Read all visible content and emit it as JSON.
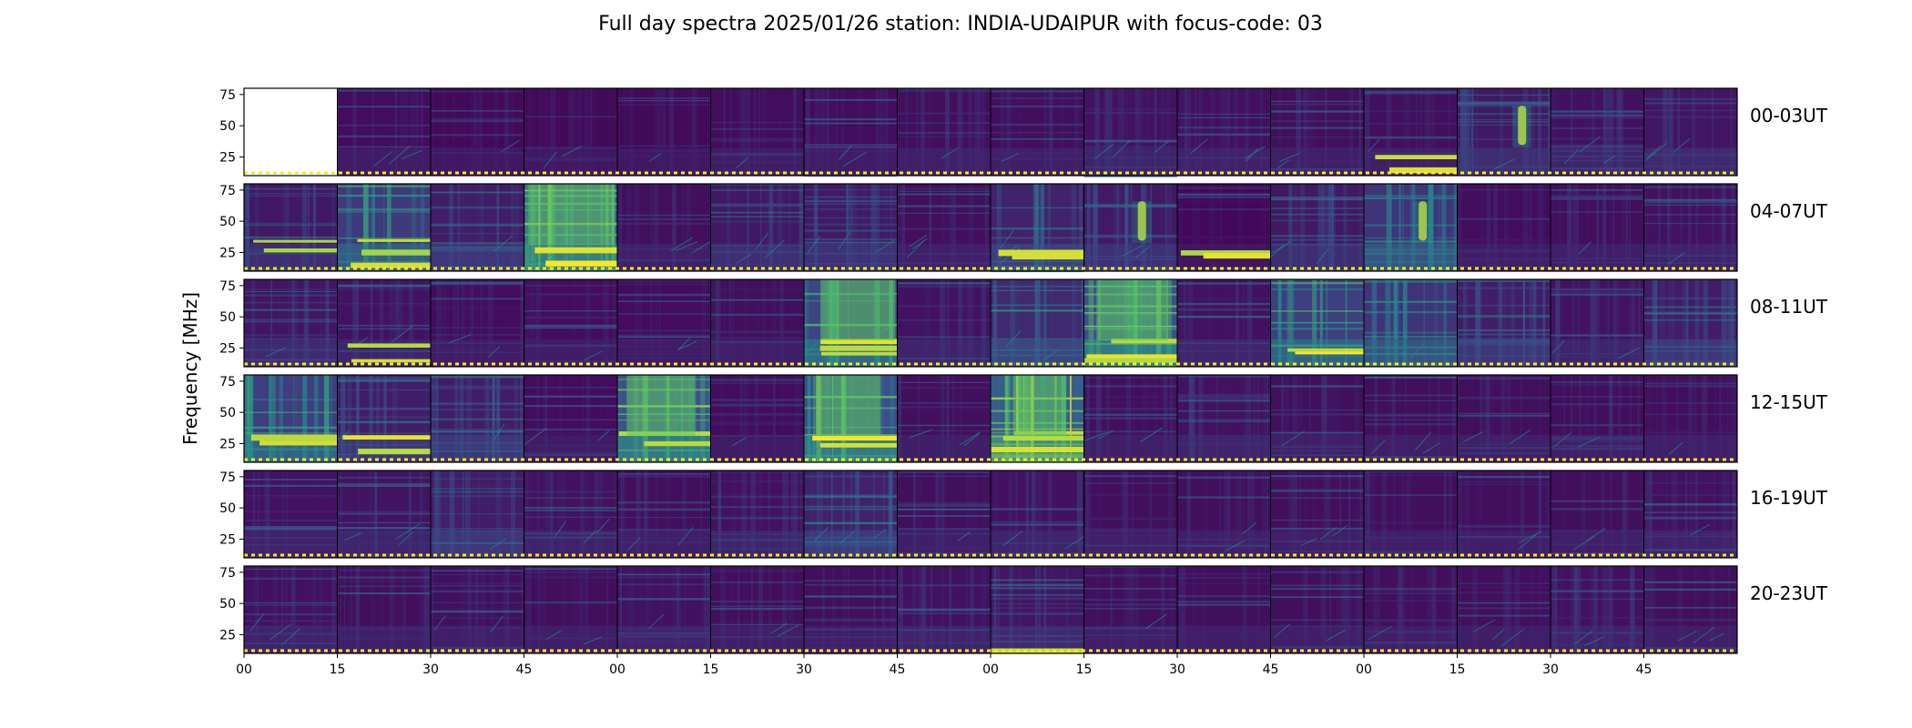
{
  "chart_data": {
    "type": "heatmap",
    "title": "Full day spectra 2025/01/26 station: INDIA-UDAIPUR with focus-code: 03",
    "ylabel": "Frequency [MHz]",
    "xlabel": "",
    "colormap": "viridis",
    "colormap_stops": [
      "#440154",
      "#3b528b",
      "#21918c",
      "#5ec962",
      "#fde725"
    ],
    "y_ticks": [
      25,
      50,
      75
    ],
    "ylim": [
      10,
      80
    ],
    "x_ticks": [
      "00",
      "15",
      "30",
      "45",
      "00",
      "15",
      "30",
      "45",
      "00",
      "15",
      "30",
      "45",
      "00",
      "15",
      "30",
      "45"
    ],
    "rows": [
      {
        "label": "00-03UT",
        "panels": [
          {
            "start": "00:00",
            "missing": true,
            "base": 0.0,
            "feature": "none"
          },
          {
            "start": "00:15",
            "base": 0.1,
            "feature": "none"
          },
          {
            "start": "00:30",
            "base": 0.08,
            "feature": "none"
          },
          {
            "start": "00:45",
            "base": 0.08,
            "feature": "none"
          },
          {
            "start": "01:00",
            "base": 0.08,
            "feature": "none"
          },
          {
            "start": "01:15",
            "base": 0.1,
            "feature": "none"
          },
          {
            "start": "01:30",
            "base": 0.1,
            "feature": "none"
          },
          {
            "start": "01:45",
            "base": 0.12,
            "feature": "none"
          },
          {
            "start": "02:00",
            "base": 0.12,
            "feature": "none"
          },
          {
            "start": "02:15",
            "base": 0.15,
            "feature": "none"
          },
          {
            "start": "02:30",
            "base": 0.13,
            "feature": "none"
          },
          {
            "start": "02:45",
            "base": 0.12,
            "feature": "none"
          },
          {
            "start": "03:00",
            "base": 0.12,
            "feature": "lowband"
          },
          {
            "start": "03:15",
            "base": 0.2,
            "feature": "burst"
          },
          {
            "start": "03:30",
            "base": 0.15,
            "feature": "none"
          },
          {
            "start": "03:45",
            "base": 0.18,
            "feature": "none"
          }
        ]
      },
      {
        "label": "04-07UT",
        "panels": [
          {
            "start": "04:00",
            "base": 0.2,
            "feature": "lowband"
          },
          {
            "start": "04:15",
            "base": 0.5,
            "feature": "lowband"
          },
          {
            "start": "04:30",
            "base": 0.25,
            "feature": "none"
          },
          {
            "start": "04:45",
            "base": 0.75,
            "feature": "strong"
          },
          {
            "start": "05:00",
            "base": 0.12,
            "feature": "none"
          },
          {
            "start": "05:15",
            "base": 0.2,
            "feature": "none"
          },
          {
            "start": "05:30",
            "base": 0.22,
            "feature": "none"
          },
          {
            "start": "05:45",
            "base": 0.12,
            "feature": "none"
          },
          {
            "start": "06:00",
            "base": 0.3,
            "feature": "lowband"
          },
          {
            "start": "06:15",
            "base": 0.22,
            "feature": "burst"
          },
          {
            "start": "06:30",
            "base": 0.06,
            "feature": "lowband"
          },
          {
            "start": "06:45",
            "base": 0.2,
            "feature": "none"
          },
          {
            "start": "07:00",
            "base": 0.45,
            "feature": "burst"
          },
          {
            "start": "07:15",
            "base": 0.1,
            "feature": "none"
          },
          {
            "start": "07:30",
            "base": 0.12,
            "feature": "none"
          },
          {
            "start": "07:45",
            "base": 0.14,
            "feature": "none"
          }
        ]
      },
      {
        "label": "08-11UT",
        "panels": [
          {
            "start": "08:00",
            "base": 0.18,
            "feature": "none"
          },
          {
            "start": "08:15",
            "base": 0.15,
            "feature": "lowband"
          },
          {
            "start": "08:30",
            "base": 0.1,
            "feature": "none"
          },
          {
            "start": "08:45",
            "base": 0.1,
            "feature": "none"
          },
          {
            "start": "09:00",
            "base": 0.1,
            "feature": "none"
          },
          {
            "start": "09:15",
            "base": 0.12,
            "feature": "none"
          },
          {
            "start": "09:30",
            "base": 0.6,
            "feature": "strong"
          },
          {
            "start": "09:45",
            "base": 0.15,
            "feature": "none"
          },
          {
            "start": "10:00",
            "base": 0.35,
            "feature": "none"
          },
          {
            "start": "10:15",
            "base": 0.7,
            "feature": "strong"
          },
          {
            "start": "10:30",
            "base": 0.15,
            "feature": "none"
          },
          {
            "start": "10:45",
            "base": 0.55,
            "feature": "lowband"
          },
          {
            "start": "11:00",
            "base": 0.45,
            "feature": "none"
          },
          {
            "start": "11:15",
            "base": 0.25,
            "feature": "none"
          },
          {
            "start": "11:30",
            "base": 0.15,
            "feature": "none"
          },
          {
            "start": "11:45",
            "base": 0.25,
            "feature": "none"
          }
        ]
      },
      {
        "label": "12-15UT",
        "panels": [
          {
            "start": "12:00",
            "base": 0.55,
            "feature": "lowband"
          },
          {
            "start": "12:15",
            "base": 0.25,
            "feature": "lowband"
          },
          {
            "start": "12:30",
            "base": 0.25,
            "feature": "none"
          },
          {
            "start": "12:45",
            "base": 0.1,
            "feature": "none"
          },
          {
            "start": "13:00",
            "base": 0.7,
            "feature": "strong"
          },
          {
            "start": "13:15",
            "base": 0.1,
            "feature": "none"
          },
          {
            "start": "13:30",
            "base": 0.7,
            "feature": "strong"
          },
          {
            "start": "13:45",
            "base": 0.12,
            "feature": "none"
          },
          {
            "start": "14:00",
            "base": 0.85,
            "feature": "strong"
          },
          {
            "start": "14:15",
            "base": 0.12,
            "feature": "none"
          },
          {
            "start": "14:30",
            "base": 0.15,
            "feature": "none"
          },
          {
            "start": "14:45",
            "base": 0.12,
            "feature": "none"
          },
          {
            "start": "15:00",
            "base": 0.12,
            "feature": "none"
          },
          {
            "start": "15:15",
            "base": 0.12,
            "feature": "none"
          },
          {
            "start": "15:30",
            "base": 0.12,
            "feature": "none"
          },
          {
            "start": "15:45",
            "base": 0.12,
            "feature": "none"
          }
        ]
      },
      {
        "label": "16-19UT",
        "panels": [
          {
            "start": "16:00",
            "base": 0.14,
            "feature": "none"
          },
          {
            "start": "16:15",
            "base": 0.16,
            "feature": "none"
          },
          {
            "start": "16:30",
            "base": 0.25,
            "feature": "none"
          },
          {
            "start": "16:45",
            "base": 0.14,
            "feature": "none"
          },
          {
            "start": "17:00",
            "base": 0.12,
            "feature": "none"
          },
          {
            "start": "17:15",
            "base": 0.15,
            "feature": "none"
          },
          {
            "start": "17:30",
            "base": 0.28,
            "feature": "none"
          },
          {
            "start": "17:45",
            "base": 0.12,
            "feature": "none"
          },
          {
            "start": "18:00",
            "base": 0.15,
            "feature": "none"
          },
          {
            "start": "18:15",
            "base": 0.12,
            "feature": "none"
          },
          {
            "start": "18:30",
            "base": 0.12,
            "feature": "none"
          },
          {
            "start": "18:45",
            "base": 0.12,
            "feature": "none"
          },
          {
            "start": "19:00",
            "base": 0.12,
            "feature": "none"
          },
          {
            "start": "19:15",
            "base": 0.12,
            "feature": "none"
          },
          {
            "start": "19:30",
            "base": 0.12,
            "feature": "none"
          },
          {
            "start": "19:45",
            "base": 0.14,
            "feature": "none"
          }
        ]
      },
      {
        "label": "20-23UT",
        "panels": [
          {
            "start": "20:00",
            "base": 0.14,
            "feature": "none"
          },
          {
            "start": "20:15",
            "base": 0.12,
            "feature": "none"
          },
          {
            "start": "20:30",
            "base": 0.12,
            "feature": "none"
          },
          {
            "start": "20:45",
            "base": 0.12,
            "feature": "none"
          },
          {
            "start": "21:00",
            "base": 0.14,
            "feature": "none"
          },
          {
            "start": "21:15",
            "base": 0.12,
            "feature": "none"
          },
          {
            "start": "21:30",
            "base": 0.12,
            "feature": "none"
          },
          {
            "start": "21:45",
            "base": 0.14,
            "feature": "none"
          },
          {
            "start": "22:00",
            "base": 0.18,
            "feature": "lowstrong"
          },
          {
            "start": "22:15",
            "base": 0.12,
            "feature": "none"
          },
          {
            "start": "22:30",
            "base": 0.12,
            "feature": "none"
          },
          {
            "start": "22:45",
            "base": 0.12,
            "feature": "none"
          },
          {
            "start": "23:00",
            "base": 0.12,
            "feature": "none"
          },
          {
            "start": "23:15",
            "base": 0.12,
            "feature": "none"
          },
          {
            "start": "23:30",
            "base": 0.14,
            "feature": "none"
          },
          {
            "start": "23:45",
            "base": 0.12,
            "feature": "none"
          }
        ]
      }
    ]
  }
}
